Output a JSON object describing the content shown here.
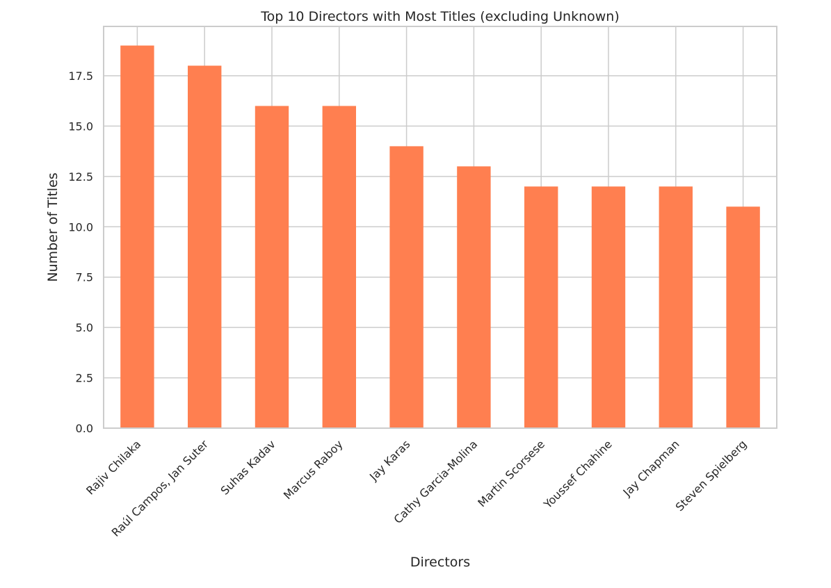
{
  "chart_data": {
    "type": "bar",
    "title": "Top 10 Directors with Most Titles (excluding Unknown)",
    "xlabel": "Directors",
    "ylabel": "Number of Titles",
    "categories": [
      "Rajiv Chilaka",
      "Raúl Campos, Jan Suter",
      "Suhas Kadav",
      "Marcus Raboy",
      "Jay Karas",
      "Cathy Garcia-Molina",
      "Martin Scorsese",
      "Youssef Chahine",
      "Jay Chapman",
      "Steven Spielberg"
    ],
    "values": [
      19,
      18,
      16,
      16,
      14,
      13,
      12,
      12,
      12,
      11
    ],
    "ylim": [
      0,
      19.95
    ],
    "yticks": [
      0,
      2.5,
      5,
      7.5,
      10,
      12.5,
      15,
      17.5
    ],
    "ytick_labels": [
      "0.0",
      "2.5",
      "5.0",
      "7.5",
      "10.0",
      "12.5",
      "15.0",
      "17.5"
    ],
    "grid": true,
    "legend": "none",
    "colors": {
      "bar": "#ff7f50",
      "grid": "#cccccc",
      "axes_edge": "#cccccc",
      "text": "#262626"
    }
  }
}
